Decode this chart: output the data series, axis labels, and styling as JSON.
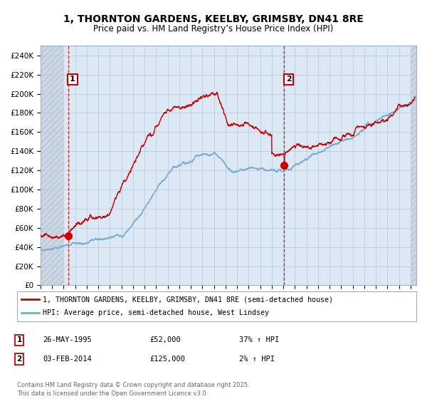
{
  "title": "1, THORNTON GARDENS, KEELBY, GRIMSBY, DN41 8RE",
  "subtitle": "Price paid vs. HM Land Registry’s House Price Index (HPI)",
  "legend_line1": "1, THORNTON GARDENS, KEELBY, GRIMSBY, DN41 8RE (semi-detached house)",
  "legend_line2": "HPI: Average price, semi-detached house, West Lindsey",
  "sale1_date": "26-MAY-1995",
  "sale1_price": "£52,000",
  "sale1_hpi": "37% ↑ HPI",
  "sale2_date": "03-FEB-2014",
  "sale2_price": "£125,000",
  "sale2_hpi": "2% ↑ HPI",
  "footer": "Contains HM Land Registry data © Crown copyright and database right 2025.\nThis data is licensed under the Open Government Licence v3.0.",
  "red_color": "#cc0000",
  "blue_color": "#7aadcf",
  "bg_plot_color": "#dce9f5",
  "background_color": "#ffffff",
  "grid_color": "#b8cfe0",
  "hatch_color": "#c0ccd8",
  "sale1_x_year": 1995.38,
  "sale2_x_year": 2014.08,
  "ylim": [
    0,
    250000
  ],
  "xlim_start": 1993.0,
  "xlim_end": 2025.5,
  "sale1_y": 52000,
  "sale2_y": 125000
}
